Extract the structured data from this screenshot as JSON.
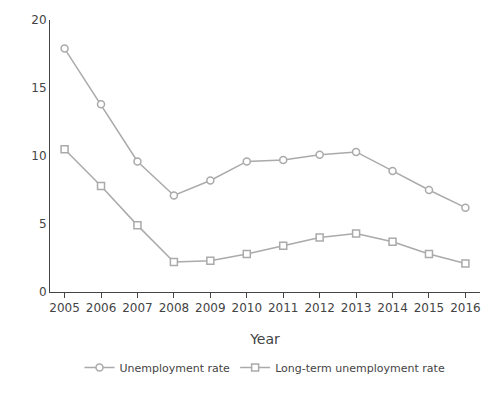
{
  "chart_data": {
    "type": "line",
    "x": [
      2005,
      2006,
      2007,
      2008,
      2009,
      2010,
      2011,
      2012,
      2013,
      2014,
      2015,
      2016
    ],
    "series": [
      {
        "name": "Unemployment rate",
        "color": "#aaaaaa",
        "marker": "circle",
        "values": [
          17.9,
          13.8,
          9.6,
          7.1,
          8.2,
          9.6,
          9.7,
          10.1,
          10.3,
          8.9,
          7.5,
          6.2
        ]
      },
      {
        "name": "Long-term unemployment rate",
        "color": "#aaaaaa",
        "marker": "square",
        "values": [
          10.5,
          7.8,
          4.9,
          2.2,
          2.3,
          2.8,
          3.4,
          4.0,
          4.3,
          3.7,
          2.8,
          2.1
        ]
      }
    ],
    "xlabel": "Year",
    "xlim": [
      2004.6,
      2016.4
    ],
    "xticks": [
      2005,
      2006,
      2007,
      2008,
      2009,
      2010,
      2011,
      2012,
      2013,
      2014,
      2015,
      2016
    ],
    "ylim": [
      0,
      20
    ],
    "yticks": [
      0,
      5,
      10,
      15,
      20
    ],
    "grid": false,
    "legend": "bottom"
  }
}
